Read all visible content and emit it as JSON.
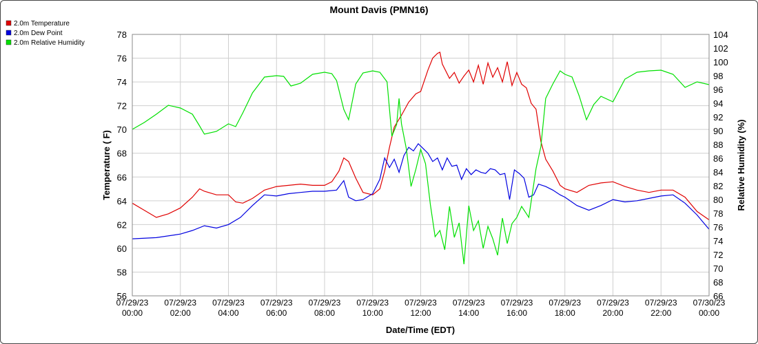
{
  "chart_data": {
    "type": "line",
    "title": "Mount Davis (PMN16)",
    "xlabel": "Date/Time (EDT)",
    "ylabel_left": "Temperature ( F)",
    "ylabel_right": "Relative Humidity (%)",
    "ylim_left": [
      56,
      78
    ],
    "ylim_right": [
      66,
      104
    ],
    "yticks_left": [
      56,
      58,
      60,
      62,
      64,
      66,
      68,
      70,
      72,
      74,
      76,
      78
    ],
    "yticks_right": [
      66,
      68,
      70,
      72,
      74,
      76,
      78,
      80,
      82,
      84,
      86,
      88,
      90,
      92,
      94,
      96,
      98,
      100,
      102,
      104
    ],
    "xlim_hours": [
      0,
      24
    ],
    "xticks": [
      {
        "h": 0,
        "date": "07/29/23",
        "time": "00:00"
      },
      {
        "h": 2,
        "date": "07/29/23",
        "time": "02:00"
      },
      {
        "h": 4,
        "date": "07/29/23",
        "time": "04:00"
      },
      {
        "h": 6,
        "date": "07/29/23",
        "time": "06:00"
      },
      {
        "h": 8,
        "date": "07/29/23",
        "time": "08:00"
      },
      {
        "h": 10,
        "date": "07/29/23",
        "time": "10:00"
      },
      {
        "h": 12,
        "date": "07/29/23",
        "time": "12:00"
      },
      {
        "h": 14,
        "date": "07/29/23",
        "time": "14:00"
      },
      {
        "h": 16,
        "date": "07/29/23",
        "time": "16:00"
      },
      {
        "h": 18,
        "date": "07/29/23",
        "time": "18:00"
      },
      {
        "h": 20,
        "date": "07/29/23",
        "time": "20:00"
      },
      {
        "h": 22,
        "date": "07/29/23",
        "time": "22:00"
      },
      {
        "h": 24,
        "date": "07/30/23",
        "time": "00:00"
      }
    ],
    "grid": true,
    "legend_position": "top-left",
    "series": [
      {
        "name": "2.0m Temperature",
        "axis": "left",
        "color": "#e00000",
        "x": [
          0,
          0.5,
          1,
          1.5,
          2,
          2.5,
          2.8,
          3,
          3.5,
          4,
          4.3,
          4.6,
          5,
          5.5,
          6,
          6.5,
          7,
          7.5,
          8,
          8.3,
          8.6,
          8.8,
          9,
          9.3,
          9.6,
          10,
          10.3,
          10.5,
          10.7,
          10.9,
          11.2,
          11.5,
          11.8,
          12,
          12.3,
          12.5,
          12.7,
          12.8,
          12.9,
          13.2,
          13.4,
          13.6,
          13.8,
          14,
          14.2,
          14.4,
          14.6,
          14.8,
          15,
          15.2,
          15.4,
          15.6,
          15.8,
          16,
          16.2,
          16.4,
          16.6,
          16.8,
          17,
          17.2,
          17.5,
          17.8,
          18,
          18.5,
          19,
          19.5,
          20,
          20.5,
          21,
          21.5,
          22,
          22.5,
          23,
          23.5,
          24
        ],
        "values": [
          63.8,
          63.2,
          62.6,
          62.9,
          63.4,
          64.3,
          65.0,
          64.8,
          64.5,
          64.5,
          63.9,
          63.8,
          64.2,
          64.9,
          65.2,
          65.3,
          65.4,
          65.3,
          65.3,
          65.6,
          66.5,
          67.6,
          67.3,
          65.9,
          64.7,
          64.5,
          65.0,
          66.5,
          68.5,
          70.2,
          71.2,
          72.3,
          73.0,
          73.2,
          75.0,
          76.0,
          76.4,
          76.5,
          75.5,
          74.3,
          74.8,
          73.9,
          74.5,
          75.0,
          74.0,
          75.4,
          73.8,
          75.6,
          74.4,
          75.2,
          74.0,
          75.7,
          73.7,
          74.8,
          73.8,
          73.5,
          72.2,
          71.7,
          69.0,
          67.5,
          66.5,
          65.3,
          65.0,
          64.7,
          65.3,
          65.5,
          65.6,
          65.2,
          64.9,
          64.7,
          64.9,
          64.9,
          64.3,
          63.1,
          62.4
        ]
      },
      {
        "name": "2.0m Dew Point",
        "axis": "left",
        "color": "#0000e0",
        "x": [
          0,
          1,
          2,
          2.5,
          3,
          3.5,
          4,
          4.5,
          5,
          5.5,
          6,
          6.5,
          7,
          7.5,
          8,
          8.5,
          8.8,
          9,
          9.3,
          9.6,
          10,
          10.3,
          10.5,
          10.7,
          10.9,
          11.1,
          11.3,
          11.5,
          11.7,
          11.9,
          12.1,
          12.3,
          12.5,
          12.7,
          12.9,
          13.1,
          13.3,
          13.5,
          13.7,
          13.9,
          14.1,
          14.3,
          14.5,
          14.7,
          14.9,
          15.1,
          15.3,
          15.5,
          15.7,
          15.9,
          16.1,
          16.3,
          16.5,
          16.7,
          16.9,
          17.2,
          17.5,
          17.8,
          18,
          18.5,
          19,
          19.5,
          20,
          20.5,
          21,
          21.5,
          22,
          22.5,
          23,
          23.5,
          24
        ],
        "values": [
          60.8,
          60.9,
          61.2,
          61.5,
          61.9,
          61.7,
          62.0,
          62.6,
          63.6,
          64.5,
          64.4,
          64.6,
          64.7,
          64.8,
          64.8,
          64.9,
          65.7,
          64.3,
          64.0,
          64.1,
          64.6,
          65.8,
          67.6,
          66.8,
          67.5,
          66.4,
          67.8,
          68.5,
          68.2,
          68.8,
          68.4,
          68.0,
          67.3,
          67.6,
          66.6,
          67.6,
          66.9,
          67.0,
          65.8,
          66.7,
          66.2,
          66.6,
          66.4,
          66.3,
          66.7,
          66.6,
          66.2,
          66.3,
          64.1,
          66.6,
          66.3,
          65.9,
          64.3,
          64.5,
          65.4,
          65.2,
          64.9,
          64.5,
          64.3,
          63.6,
          63.2,
          63.6,
          64.1,
          63.9,
          64.0,
          64.2,
          64.4,
          64.5,
          63.8,
          62.8,
          61.6
        ]
      },
      {
        "name": "2.0m Relative Humidity",
        "axis": "right",
        "color": "#00e000",
        "x": [
          0,
          0.5,
          1,
          1.5,
          2,
          2.5,
          2.8,
          3,
          3.5,
          4,
          4.3,
          4.6,
          5,
          5.5,
          6,
          6.3,
          6.6,
          7,
          7.5,
          8,
          8.3,
          8.5,
          8.8,
          9,
          9.3,
          9.6,
          10,
          10.3,
          10.6,
          10.8,
          11,
          11.1,
          11.2,
          11.4,
          11.6,
          11.8,
          12,
          12.2,
          12.4,
          12.6,
          12.8,
          13,
          13.2,
          13.4,
          13.6,
          13.8,
          14,
          14.2,
          14.4,
          14.6,
          14.8,
          15,
          15.2,
          15.4,
          15.6,
          15.8,
          16,
          16.2,
          16.5,
          16.8,
          17,
          17.2,
          17.5,
          17.8,
          18,
          18.3,
          18.6,
          18.9,
          19.2,
          19.5,
          20,
          20.5,
          21,
          21.5,
          22,
          22.5,
          23,
          23.5,
          24
        ],
        "values": [
          90.2,
          91.2,
          92.4,
          93.7,
          93.3,
          92.4,
          90.7,
          89.5,
          89.9,
          91.0,
          90.6,
          92.6,
          95.5,
          97.8,
          98.0,
          97.9,
          96.5,
          96.9,
          98.2,
          98.5,
          98.3,
          97.3,
          93.1,
          91.6,
          96.8,
          98.4,
          98.7,
          98.5,
          97.1,
          89.2,
          90.9,
          94.7,
          91.0,
          87.4,
          81.9,
          84.4,
          87.3,
          85.2,
          79.3,
          74.6,
          75.5,
          72.7,
          79.0,
          74.5,
          76.6,
          70.6,
          79.1,
          75.5,
          76.9,
          72.9,
          76.1,
          74.3,
          71.9,
          77.3,
          73.6,
          76.5,
          77.4,
          79.0,
          77.4,
          84.5,
          87.7,
          94.7,
          96.8,
          98.7,
          98.2,
          97.8,
          95.0,
          91.6,
          93.8,
          95.0,
          94.2,
          97.5,
          98.5,
          98.7,
          98.8,
          98.2,
          96.3,
          97.1,
          96.7
        ]
      }
    ]
  }
}
